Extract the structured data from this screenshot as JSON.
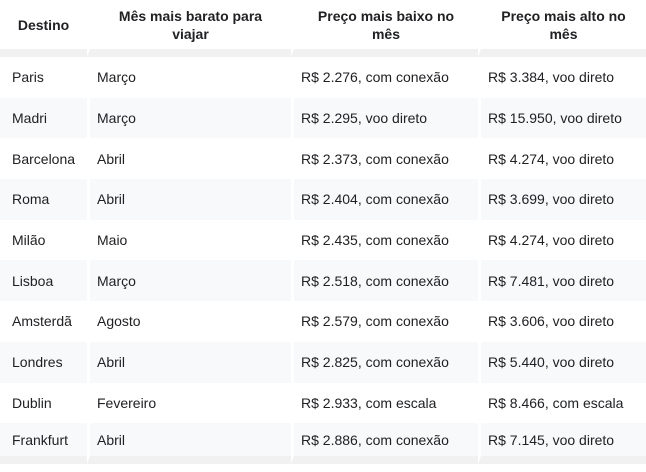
{
  "table": {
    "headers": [
      "Destino",
      "Mês mais barato para viajar",
      "Preço mais baixo no mês",
      "Preço mais alto no mês"
    ],
    "rows": [
      [
        "Paris",
        "Março",
        "R$ 2.276, com conexão",
        "R$ 3.384, voo direto"
      ],
      [
        "Madri",
        "Março",
        "R$ 2.295, voo direto",
        "R$ 15.950, voo direto"
      ],
      [
        "Barcelona",
        "Abril",
        "R$ 2.373, com conexão",
        "R$ 4.274, voo direto"
      ],
      [
        "Roma",
        "Abril",
        "R$ 2.404, com conexão",
        "R$ 3.699, voo direto"
      ],
      [
        "Milão",
        "Maio",
        "R$ 2.435, com conexão",
        "R$ 4.274, voo direto"
      ],
      [
        "Lisboa",
        "Março",
        "R$ 2.518, com conexão",
        "R$ 7.481, voo direto"
      ],
      [
        "Amsterdã",
        "Agosto",
        "R$ 2.579, com conexão",
        "R$ 3.606, voo direto"
      ],
      [
        "Londres",
        "Abril",
        "R$ 2.825, com conexão",
        "R$ 5.440, voo direto"
      ],
      [
        "Dublin",
        "Fevereiro",
        "R$ 2.933, com escala",
        "R$ 8.466, com escala"
      ],
      [
        "Frankfurt",
        "Abril",
        "R$ 2.886, com conexão",
        "R$ 7.145, voo direto"
      ]
    ],
    "colors": {
      "zebra_row_bg": "#f8f9fa",
      "separator_band": "#f1f1f1",
      "header_text": "#202124",
      "body_text": "#202124",
      "background": "#ffffff"
    }
  }
}
